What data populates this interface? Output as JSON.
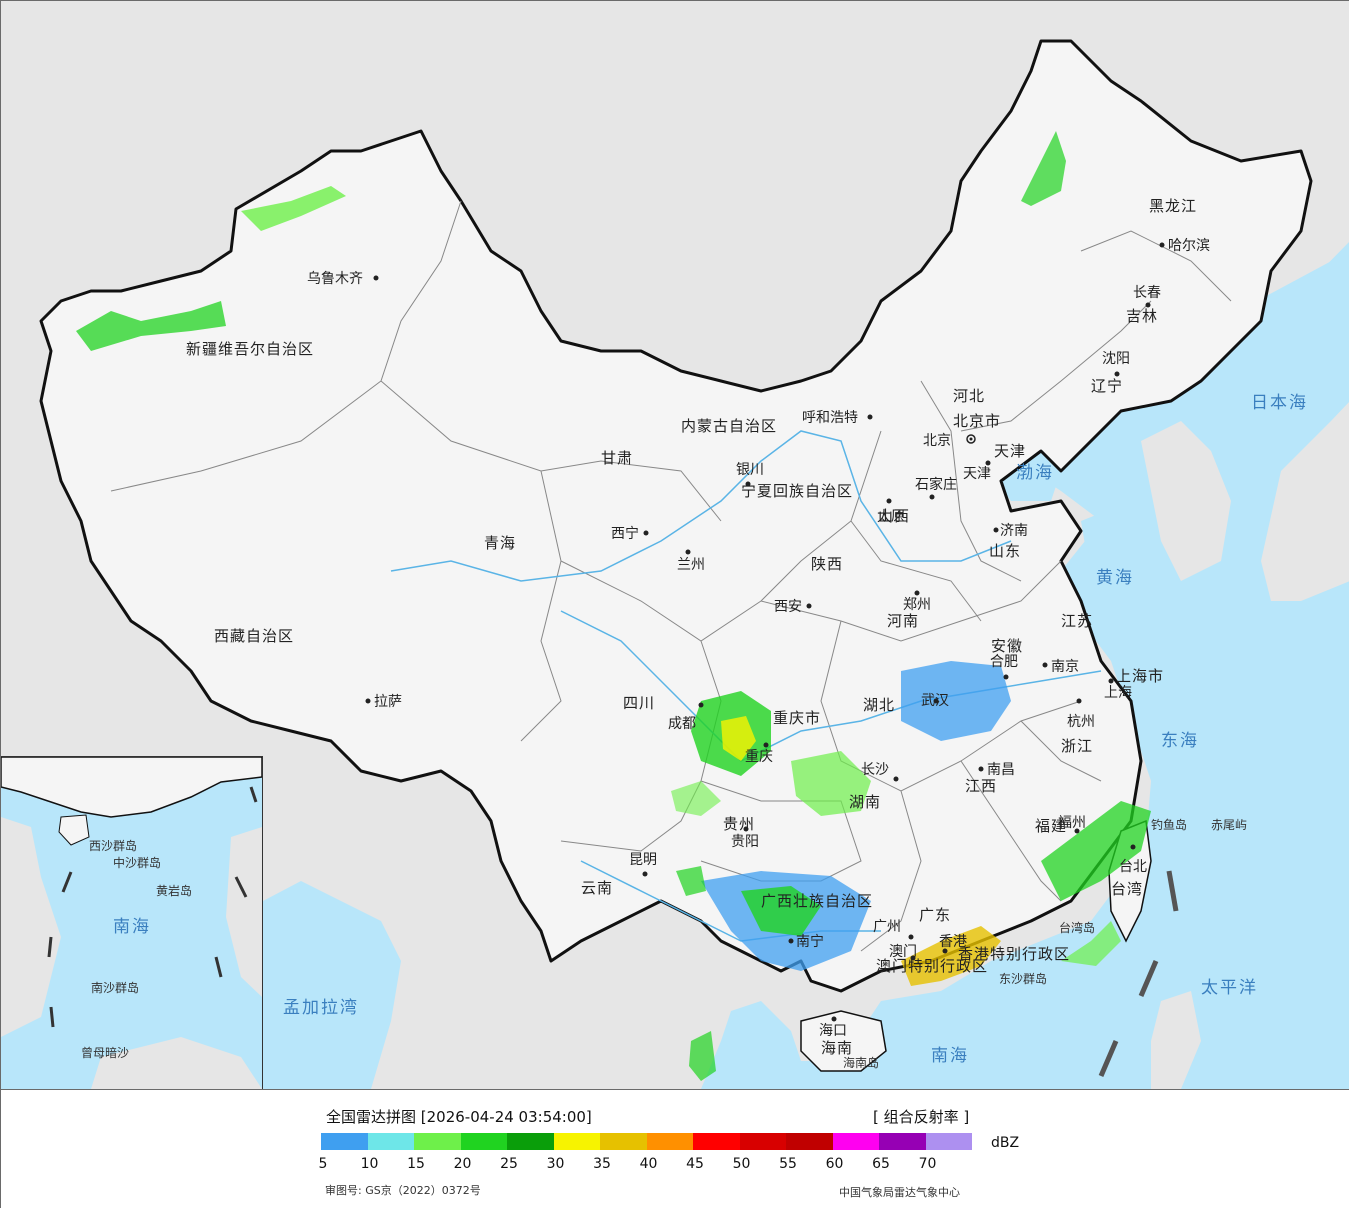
{
  "legend": {
    "title": "全国雷达拼图 [2026-04-24 03:54:00]",
    "product": "[ 组合反射率 ]",
    "unit": "dBZ",
    "scale": [
      {
        "min": 5,
        "color": "#3f9ff0"
      },
      {
        "min": 10,
        "color": "#6ee6e8"
      },
      {
        "min": 15,
        "color": "#6ef04a"
      },
      {
        "min": 20,
        "color": "#20d320"
      },
      {
        "min": 25,
        "color": "#0a9e0a"
      },
      {
        "min": 30,
        "color": "#f7f300"
      },
      {
        "min": 35,
        "color": "#e6c100"
      },
      {
        "min": 40,
        "color": "#ff9000"
      },
      {
        "min": 45,
        "color": "#ff0000"
      },
      {
        "min": 50,
        "color": "#d80000"
      },
      {
        "min": 55,
        "color": "#c00000"
      },
      {
        "min": 60,
        "color": "#ff00f0"
      },
      {
        "min": 65,
        "color": "#9600b4"
      },
      {
        "min": 70,
        "color": "#ad90f0"
      }
    ],
    "tick_labels": [
      "5",
      "10",
      "15",
      "20",
      "25",
      "30",
      "35",
      "40",
      "45",
      "50",
      "55",
      "60",
      "65",
      "70"
    ],
    "approval_number": "审图号: GS京（2022）0372号",
    "source": "中国气象局雷达气象中心"
  },
  "map": {
    "colors": {
      "land": "#f5f5f5",
      "foreign": "#e6e6e6",
      "sea": "#b8e6fa",
      "border": "#111111"
    },
    "cities": [
      "乌鲁木齐",
      "拉萨",
      "西宁",
      "兰州",
      "银川",
      "呼和浩特",
      "北京",
      "天津",
      "石家庄",
      "太原",
      "济南",
      "郑州",
      "西安",
      "成都",
      "重庆",
      "贵阳",
      "昆明",
      "南宁",
      "广州",
      "长沙",
      "武汉",
      "合肥",
      "南京",
      "上海",
      "杭州",
      "南昌",
      "福州",
      "台北",
      "哈尔滨",
      "长春",
      "沈阳",
      "澳门",
      "香港",
      "海口"
    ],
    "provinces": [
      "新疆维吾尔自治区",
      "西藏自治区",
      "青海",
      "甘肃",
      "四川",
      "云南",
      "贵州",
      "广西壮族自治区",
      "广东",
      "湖南",
      "湖北",
      "河南",
      "陕西",
      "山西",
      "河北",
      "山东",
      "江苏",
      "安徽",
      "浙江",
      "江西",
      "福建",
      "台湾",
      "黑龙江",
      "吉林",
      "辽宁",
      "内蒙古自治区",
      "宁夏回族自治区",
      "北京市",
      "天津",
      "重庆市",
      "上海市",
      "海南",
      "香港特别行政区",
      "澳门特别行政区",
      "海南岛",
      "台湾岛"
    ],
    "seas": [
      "日本海",
      "渤海",
      "黄海",
      "东海",
      "南海",
      "太平洋",
      "孟加拉湾"
    ],
    "islands": [
      "钓鱼岛",
      "赤尾屿",
      "东沙群岛",
      "西沙群岛",
      "中沙群岛",
      "南沙群岛",
      "黄岩岛",
      "曾母暗沙"
    ]
  }
}
